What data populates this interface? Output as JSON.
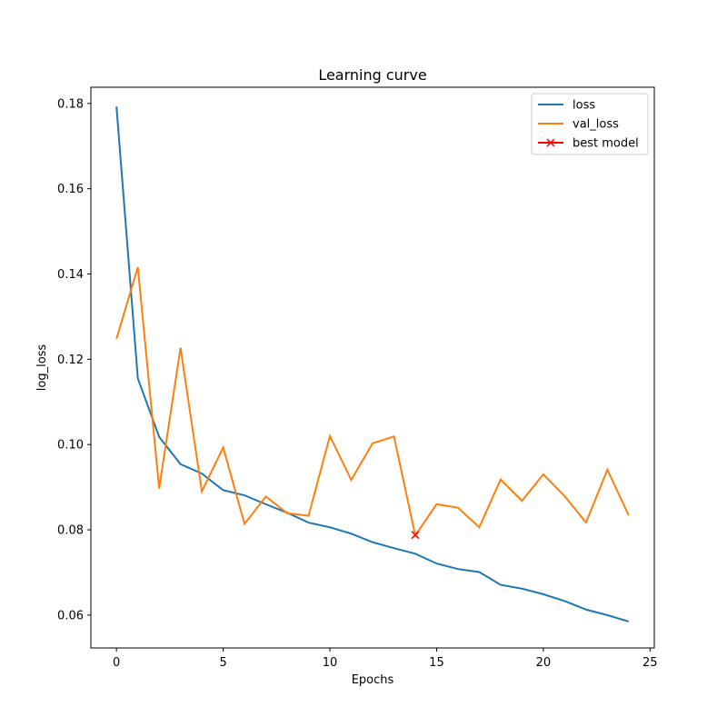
{
  "chart_data": {
    "type": "line",
    "title": "Learning curve",
    "xlabel": "Epochs",
    "ylabel": "log_loss",
    "xlim": [
      -1.2,
      25.2
    ],
    "ylim": [
      0.0523,
      0.1838
    ],
    "xticks": [
      0,
      5,
      10,
      15,
      20,
      25
    ],
    "yticks": [
      0.06,
      0.08,
      0.1,
      0.12,
      0.14,
      0.16,
      0.18
    ],
    "ytick_labels": [
      "0.06",
      "0.08",
      "0.10",
      "0.12",
      "0.14",
      "0.16",
      "0.18"
    ],
    "grid": false,
    "legend_position": "top-right",
    "series": [
      {
        "name": "loss",
        "color": "#1f77b4",
        "x": [
          0,
          1,
          2,
          3,
          4,
          5,
          6,
          7,
          8,
          9,
          10,
          11,
          12,
          13,
          14,
          15,
          16,
          17,
          18,
          19,
          20,
          21,
          22,
          23,
          24
        ],
        "values": [
          0.1793,
          0.1155,
          0.1018,
          0.0954,
          0.0932,
          0.0893,
          0.0881,
          0.086,
          0.084,
          0.0817,
          0.0806,
          0.0791,
          0.0771,
          0.0757,
          0.0744,
          0.0721,
          0.0708,
          0.0701,
          0.0671,
          0.0662,
          0.0649,
          0.0633,
          0.0613,
          0.06,
          0.0585
        ]
      },
      {
        "name": "val_loss",
        "color": "#ff7f0e",
        "x": [
          0,
          1,
          2,
          3,
          4,
          5,
          6,
          7,
          8,
          9,
          10,
          11,
          12,
          13,
          14,
          15,
          16,
          17,
          18,
          19,
          20,
          21,
          22,
          23,
          24
        ],
        "values": [
          0.1248,
          0.1416,
          0.0897,
          0.1227,
          0.089,
          0.0993,
          0.0814,
          0.0878,
          0.0839,
          0.0833,
          0.102,
          0.0917,
          0.1003,
          0.1019,
          0.0787,
          0.086,
          0.0852,
          0.0806,
          0.0918,
          0.0868,
          0.093,
          0.0879,
          0.0817,
          0.0941,
          0.0834
        ]
      }
    ],
    "best_model": {
      "name": "best model",
      "color": "#ff0000",
      "marker": "x",
      "x": 14,
      "y": 0.0788
    }
  }
}
